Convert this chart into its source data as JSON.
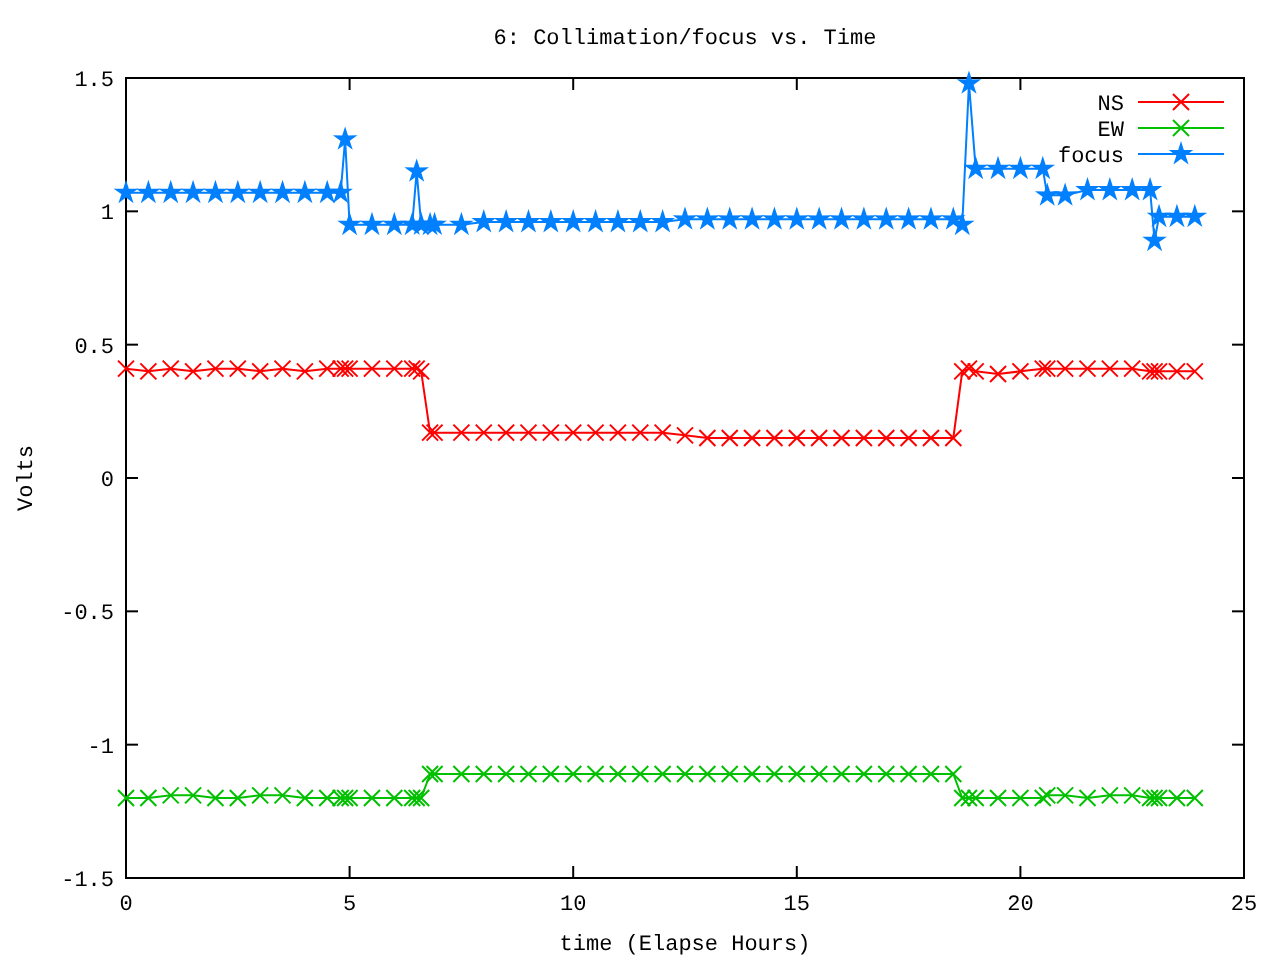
{
  "chart_data": {
    "type": "line",
    "title": "6: Collimation/focus vs. Time",
    "xlabel": "time (Elapse Hours)",
    "ylabel": "Volts",
    "x": [
      0,
      0.5,
      1,
      1.5,
      2,
      2.5,
      3,
      3.5,
      4,
      4.5,
      4.8,
      4.9,
      5,
      5.5,
      6,
      6.4,
      6.5,
      6.6,
      6.8,
      6.9,
      7.5,
      8,
      8.5,
      9,
      9.5,
      10,
      10.5,
      11,
      11.5,
      12,
      12.5,
      13,
      13.5,
      14,
      14.5,
      15,
      15.5,
      16,
      16.5,
      17,
      17.5,
      18,
      18.5,
      18.7,
      18.85,
      19,
      19.5,
      20,
      20.5,
      20.6,
      21,
      21.5,
      22,
      22.5,
      22.9,
      23,
      23.1,
      23.5,
      23.9
    ],
    "series": [
      {
        "name": "NS",
        "color": "#ff0000",
        "marker": "cross",
        "values": [
          0.41,
          0.4,
          0.41,
          0.4,
          0.41,
          0.41,
          0.4,
          0.41,
          0.4,
          0.41,
          0.41,
          0.41,
          0.41,
          0.41,
          0.41,
          0.41,
          0.41,
          0.4,
          0.17,
          0.17,
          0.17,
          0.17,
          0.17,
          0.17,
          0.17,
          0.17,
          0.17,
          0.17,
          0.17,
          0.17,
          0.16,
          0.15,
          0.15,
          0.15,
          0.15,
          0.15,
          0.15,
          0.15,
          0.15,
          0.15,
          0.15,
          0.15,
          0.15,
          0.4,
          0.41,
          0.4,
          0.39,
          0.4,
          0.41,
          0.41,
          0.41,
          0.41,
          0.41,
          0.41,
          0.4,
          0.4,
          0.4,
          0.4,
          0.4
        ]
      },
      {
        "name": "EW",
        "color": "#00c000",
        "marker": "cross",
        "values": [
          -1.2,
          -1.2,
          -1.19,
          -1.19,
          -1.2,
          -1.2,
          -1.19,
          -1.19,
          -1.2,
          -1.2,
          -1.2,
          -1.2,
          -1.2,
          -1.2,
          -1.2,
          -1.2,
          -1.2,
          -1.2,
          -1.11,
          -1.11,
          -1.11,
          -1.11,
          -1.11,
          -1.11,
          -1.11,
          -1.11,
          -1.11,
          -1.11,
          -1.11,
          -1.11,
          -1.11,
          -1.11,
          -1.11,
          -1.11,
          -1.11,
          -1.11,
          -1.11,
          -1.11,
          -1.11,
          -1.11,
          -1.11,
          -1.11,
          -1.11,
          -1.2,
          -1.2,
          -1.2,
          -1.2,
          -1.2,
          -1.2,
          -1.19,
          -1.19,
          -1.2,
          -1.19,
          -1.19,
          -1.2,
          -1.2,
          -1.2,
          -1.2,
          -1.2
        ]
      },
      {
        "name": "focus",
        "color": "#0080ff",
        "marker": "star",
        "values": [
          1.07,
          1.07,
          1.07,
          1.07,
          1.07,
          1.07,
          1.07,
          1.07,
          1.07,
          1.07,
          1.07,
          1.27,
          0.95,
          0.95,
          0.95,
          0.95,
          1.15,
          0.95,
          0.95,
          0.95,
          0.95,
          0.96,
          0.96,
          0.96,
          0.96,
          0.96,
          0.96,
          0.96,
          0.96,
          0.96,
          0.97,
          0.97,
          0.97,
          0.97,
          0.97,
          0.97,
          0.97,
          0.97,
          0.97,
          0.97,
          0.97,
          0.97,
          0.97,
          0.95,
          1.48,
          1.16,
          1.16,
          1.16,
          1.16,
          1.06,
          1.06,
          1.08,
          1.08,
          1.08,
          1.08,
          0.89,
          0.98,
          0.98,
          0.98
        ]
      }
    ],
    "xlim": [
      0,
      25
    ],
    "xticks": [
      0,
      5,
      10,
      15,
      20,
      25
    ],
    "ylim": [
      -1.5,
      1.5
    ],
    "yticks": [
      -1.5,
      -1,
      -0.5,
      0,
      0.5,
      1,
      1.5
    ],
    "grid": false,
    "legend": "top right",
    "line_style": "solid"
  }
}
